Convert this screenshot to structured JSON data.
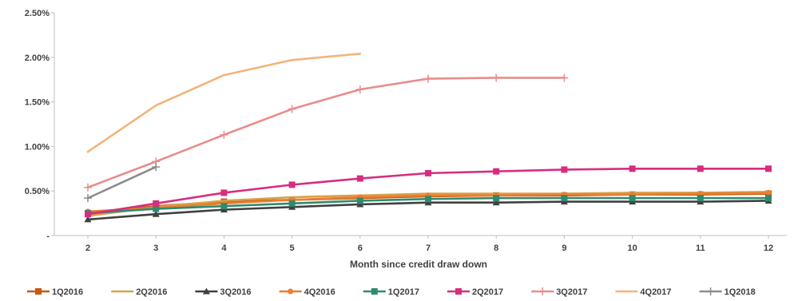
{
  "chart_data": {
    "type": "line",
    "title": "",
    "xlabel": "Month since credit draw down",
    "ylabel": "",
    "x": [
      2,
      3,
      4,
      5,
      6,
      7,
      8,
      9,
      10,
      11,
      12
    ],
    "x_tick_labels": [
      "2",
      "3",
      "4",
      "5",
      "6",
      "7",
      "8",
      "9",
      "10",
      "11",
      "12"
    ],
    "y_tick_labels": [
      "-",
      "0.50%",
      "1.00%",
      "1.50%",
      "2.00%",
      "2.50%"
    ],
    "ylim": [
      0,
      2.5
    ],
    "y_unit": "%",
    "grid": false,
    "legend_position": "bottom",
    "series": [
      {
        "name": "1Q2016",
        "color": "#c55a11",
        "marker": "square",
        "values": [
          0.25,
          0.33,
          0.38,
          0.4,
          0.42,
          0.44,
          0.45,
          0.45,
          0.46,
          0.46,
          0.47
        ]
      },
      {
        "name": "2Q2016",
        "color": "#d6a24a",
        "marker": "none",
        "values": [
          0.22,
          0.32,
          0.39,
          0.43,
          0.45,
          0.47,
          0.47,
          0.47,
          0.48,
          0.48,
          0.49
        ]
      },
      {
        "name": "3Q2016",
        "color": "#404040",
        "marker": "triangle",
        "values": [
          0.18,
          0.24,
          0.29,
          0.32,
          0.35,
          0.37,
          0.37,
          0.38,
          0.38,
          0.38,
          0.39
        ]
      },
      {
        "name": "4Q2016",
        "color": "#ed7d31",
        "marker": "circle",
        "values": [
          0.27,
          0.31,
          0.36,
          0.4,
          0.43,
          0.45,
          0.45,
          0.46,
          0.46,
          0.47,
          0.48
        ]
      },
      {
        "name": "1Q2017",
        "color": "#2e8b6e",
        "marker": "square",
        "values": [
          0.25,
          0.3,
          0.33,
          0.36,
          0.39,
          0.41,
          0.42,
          0.42,
          0.42,
          0.42,
          0.42
        ]
      },
      {
        "name": "2Q2017",
        "color": "#d62e7f",
        "marker": "square",
        "values": [
          0.24,
          0.36,
          0.48,
          0.57,
          0.64,
          0.7,
          0.72,
          0.74,
          0.75,
          0.75,
          0.75
        ]
      },
      {
        "name": "3Q2017",
        "color": "#e98c8c",
        "marker": "plus",
        "values": [
          0.54,
          0.83,
          1.13,
          1.42,
          1.64,
          1.76,
          1.77,
          1.77,
          null,
          null,
          null
        ]
      },
      {
        "name": "4Q2017",
        "color": "#f2b47a",
        "marker": "none",
        "values": [
          0.94,
          1.46,
          1.8,
          1.97,
          2.04,
          null,
          null,
          null,
          null,
          null,
          null
        ]
      },
      {
        "name": "1Q2018",
        "color": "#8c8c8c",
        "marker": "plus",
        "values": [
          0.42,
          0.77,
          null,
          null,
          null,
          null,
          null,
          null,
          null,
          null,
          null
        ]
      }
    ]
  }
}
